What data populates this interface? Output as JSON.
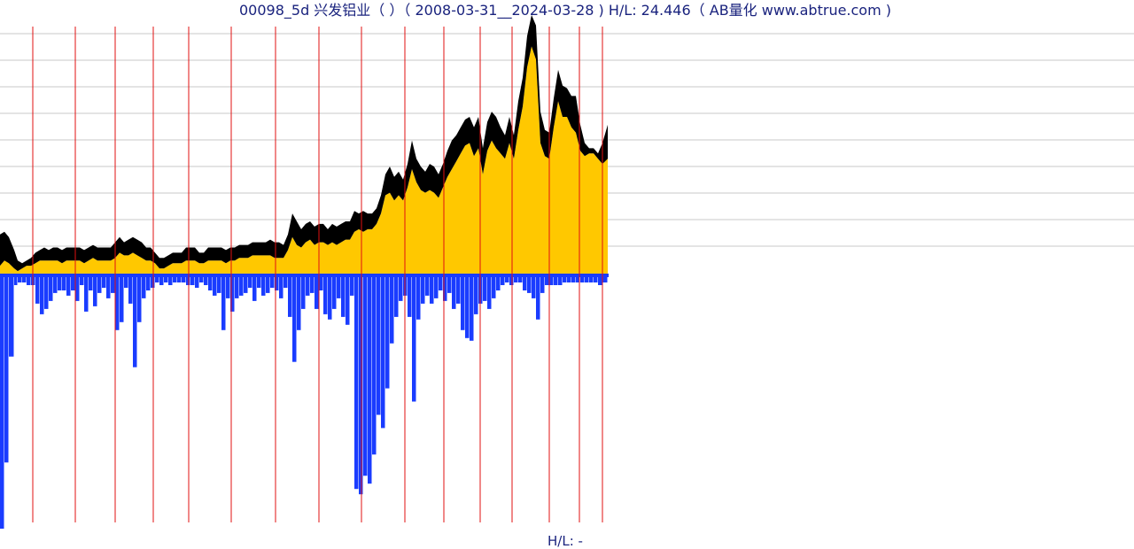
{
  "chart_data": {
    "type": "area",
    "title": "00098_5d 兴发铝业（ ）（ 2008-03-31__2024-03-28 ) H/L: 24.446（ AB量化  www.abtrue.com )",
    "footer": "H/L: -",
    "grid": true,
    "colors": {
      "price_fill": "#ffc800",
      "price_band": "#000000",
      "volume": "#1a3cff",
      "vertical_lines": "#e01010",
      "grid": "#c8c8c8",
      "title": "#1a237e"
    },
    "ylim": [
      0,
      1
    ],
    "volume_ylim": [
      0,
      1
    ],
    "x": [
      0,
      5,
      10,
      16,
      20,
      25,
      30,
      35,
      40,
      45,
      50,
      55,
      60,
      65,
      70,
      75,
      80,
      85,
      90,
      95,
      100,
      105,
      110,
      115,
      120,
      125,
      130,
      135,
      140,
      145,
      150,
      155,
      160,
      165,
      170,
      175,
      180,
      185,
      190,
      195,
      200,
      205,
      210,
      215,
      220,
      225,
      230,
      235,
      240,
      245,
      250,
      255,
      260,
      265,
      270,
      275,
      280,
      285,
      290,
      295,
      300,
      305,
      310,
      315,
      320,
      325,
      330,
      335,
      340,
      345,
      350,
      355,
      360,
      365,
      370,
      375,
      380,
      385,
      390,
      395,
      400,
      405,
      410,
      415,
      420,
      425,
      430,
      435,
      440,
      445,
      450,
      455,
      460,
      465,
      470,
      475,
      480,
      485,
      490,
      495,
      500,
      505,
      510,
      515,
      520,
      525,
      530,
      535,
      540,
      545,
      550,
      555,
      560,
      565,
      570,
      575,
      580,
      585,
      590,
      595,
      600,
      605,
      610,
      615,
      620,
      625,
      630,
      635,
      640,
      645,
      650,
      655,
      660,
      665,
      670,
      675,
      680,
      686
    ],
    "high": [
      0.15,
      0.16,
      0.14,
      0.09,
      0.05,
      0.04,
      0.05,
      0.06,
      0.08,
      0.09,
      0.1,
      0.09,
      0.1,
      0.1,
      0.09,
      0.1,
      0.1,
      0.1,
      0.1,
      0.09,
      0.1,
      0.11,
      0.1,
      0.1,
      0.1,
      0.1,
      0.12,
      0.14,
      0.12,
      0.13,
      0.14,
      0.13,
      0.12,
      0.1,
      0.1,
      0.08,
      0.06,
      0.06,
      0.07,
      0.08,
      0.08,
      0.08,
      0.1,
      0.1,
      0.1,
      0.08,
      0.08,
      0.1,
      0.1,
      0.1,
      0.1,
      0.09,
      0.1,
      0.1,
      0.11,
      0.11,
      0.11,
      0.12,
      0.12,
      0.12,
      0.12,
      0.13,
      0.12,
      0.12,
      0.11,
      0.15,
      0.23,
      0.2,
      0.17,
      0.19,
      0.2,
      0.18,
      0.19,
      0.19,
      0.17,
      0.19,
      0.18,
      0.19,
      0.2,
      0.2,
      0.24,
      0.23,
      0.24,
      0.23,
      0.23,
      0.25,
      0.3,
      0.38,
      0.41,
      0.37,
      0.39,
      0.36,
      0.42,
      0.51,
      0.44,
      0.41,
      0.39,
      0.42,
      0.41,
      0.38,
      0.42,
      0.47,
      0.51,
      0.53,
      0.56,
      0.59,
      0.6,
      0.56,
      0.6,
      0.48,
      0.58,
      0.62,
      0.6,
      0.56,
      0.53,
      0.6,
      0.53,
      0.66,
      0.75,
      0.91,
      0.99,
      0.95,
      0.62,
      0.55,
      0.54,
      0.67,
      0.78,
      0.72,
      0.71,
      0.68,
      0.68,
      0.57,
      0.5,
      0.48,
      0.48,
      0.46,
      0.5,
      0.57
    ],
    "low": [
      0.03,
      0.05,
      0.04,
      0.02,
      0.01,
      0.02,
      0.03,
      0.03,
      0.04,
      0.05,
      0.05,
      0.05,
      0.05,
      0.05,
      0.04,
      0.05,
      0.05,
      0.05,
      0.05,
      0.04,
      0.05,
      0.06,
      0.05,
      0.05,
      0.05,
      0.05,
      0.06,
      0.08,
      0.07,
      0.07,
      0.08,
      0.07,
      0.06,
      0.05,
      0.05,
      0.04,
      0.02,
      0.02,
      0.03,
      0.04,
      0.04,
      0.04,
      0.05,
      0.05,
      0.05,
      0.04,
      0.04,
      0.05,
      0.05,
      0.05,
      0.05,
      0.04,
      0.05,
      0.05,
      0.06,
      0.06,
      0.06,
      0.07,
      0.07,
      0.07,
      0.07,
      0.07,
      0.06,
      0.06,
      0.06,
      0.09,
      0.14,
      0.11,
      0.1,
      0.12,
      0.13,
      0.11,
      0.12,
      0.12,
      0.11,
      0.12,
      0.11,
      0.12,
      0.13,
      0.13,
      0.16,
      0.17,
      0.16,
      0.17,
      0.17,
      0.19,
      0.23,
      0.3,
      0.31,
      0.28,
      0.3,
      0.28,
      0.33,
      0.4,
      0.35,
      0.32,
      0.31,
      0.32,
      0.31,
      0.29,
      0.33,
      0.37,
      0.4,
      0.43,
      0.46,
      0.49,
      0.5,
      0.45,
      0.48,
      0.38,
      0.47,
      0.51,
      0.48,
      0.46,
      0.44,
      0.5,
      0.44,
      0.55,
      0.64,
      0.79,
      0.87,
      0.82,
      0.5,
      0.45,
      0.44,
      0.56,
      0.66,
      0.6,
      0.6,
      0.56,
      0.54,
      0.47,
      0.45,
      0.46,
      0.46,
      0.44,
      0.42,
      0.44
    ],
    "volume": [
      0.95,
      0.7,
      0.3,
      0.03,
      0.02,
      0.02,
      0.03,
      0.03,
      0.1,
      0.14,
      0.12,
      0.09,
      0.06,
      0.05,
      0.05,
      0.07,
      0.05,
      0.09,
      0.03,
      0.13,
      0.05,
      0.11,
      0.06,
      0.04,
      0.08,
      0.06,
      0.2,
      0.17,
      0.04,
      0.1,
      0.34,
      0.17,
      0.08,
      0.05,
      0.04,
      0.02,
      0.03,
      0.02,
      0.03,
      0.02,
      0.02,
      0.02,
      0.03,
      0.03,
      0.04,
      0.02,
      0.03,
      0.05,
      0.07,
      0.06,
      0.2,
      0.08,
      0.13,
      0.08,
      0.07,
      0.06,
      0.04,
      0.09,
      0.04,
      0.07,
      0.06,
      0.04,
      0.05,
      0.08,
      0.04,
      0.15,
      0.32,
      0.2,
      0.12,
      0.07,
      0.06,
      0.12,
      0.05,
      0.14,
      0.16,
      0.12,
      0.08,
      0.15,
      0.18,
      0.07,
      0.8,
      0.82,
      0.75,
      0.78,
      0.67,
      0.52,
      0.57,
      0.42,
      0.25,
      0.15,
      0.09,
      0.07,
      0.15,
      0.47,
      0.16,
      0.1,
      0.07,
      0.1,
      0.08,
      0.05,
      0.09,
      0.06,
      0.12,
      0.1,
      0.2,
      0.23,
      0.24,
      0.14,
      0.1,
      0.09,
      0.12,
      0.08,
      0.05,
      0.03,
      0.02,
      0.03,
      0.02,
      0.02,
      0.05,
      0.06,
      0.08,
      0.16,
      0.06,
      0.03,
      0.03,
      0.03,
      0.03,
      0.02,
      0.02,
      0.02,
      0.02,
      0.02,
      0.02,
      0.02,
      0.02,
      0.03,
      0.02,
      0.02
    ],
    "vertical_lines_x": [
      37,
      85,
      130,
      173,
      213,
      261,
      311,
      360,
      408,
      457,
      501,
      542,
      578,
      620,
      654,
      680
    ],
    "grid_rows": 9
  }
}
